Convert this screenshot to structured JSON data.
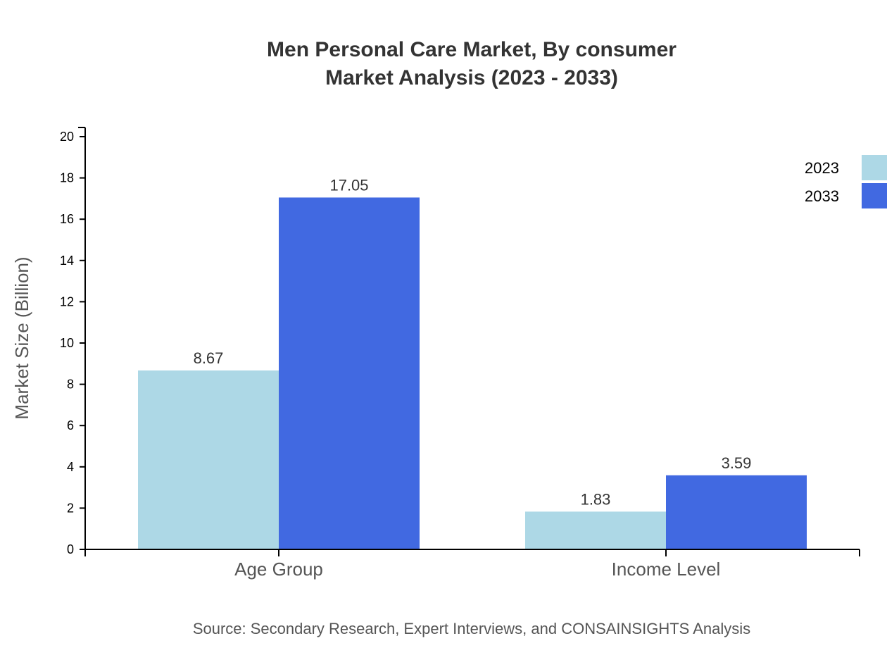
{
  "chart_data": {
    "type": "bar",
    "title": [
      "Men Personal Care Market, By consumer",
      "Market Analysis (2023 - 2033)"
    ],
    "xlabel": "",
    "ylabel": "Market Size (Billion)",
    "ylim": [
      0,
      20
    ],
    "yticks": [
      0,
      2,
      4,
      6,
      8,
      10,
      12,
      14,
      16,
      18,
      20
    ],
    "categories": [
      "Age Group",
      "Income Level"
    ],
    "series": [
      {
        "name": "2023",
        "color": "#add8e6",
        "values": [
          8.67,
          1.83
        ],
        "labels": [
          "8.67",
          "1.83"
        ]
      },
      {
        "name": "2033",
        "color": "#4169e1",
        "values": [
          17.05,
          3.59
        ],
        "labels": [
          "17.05",
          "3.59"
        ]
      }
    ],
    "legend_position": "top-right",
    "grid": false
  },
  "source": "Source: Secondary Research, Expert Interviews, and CONSAINSIGHTS Analysis"
}
